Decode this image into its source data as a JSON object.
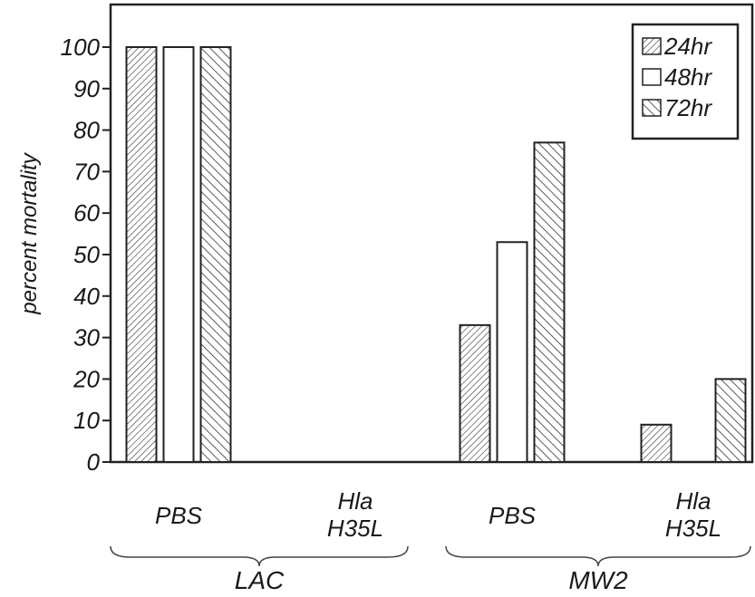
{
  "chart_data": {
    "type": "bar",
    "ylabel": "percent mortality",
    "xlabel": "",
    "ylim": [
      0,
      100
    ],
    "yticks": [
      0,
      10,
      20,
      30,
      40,
      50,
      60,
      70,
      80,
      90,
      100
    ],
    "grid": false,
    "legend_position": "top-right",
    "categories": [
      {
        "lines": [
          "PBS"
        ],
        "group": "LAC"
      },
      {
        "lines": [
          "Hla",
          "H35L"
        ],
        "group": "LAC"
      },
      {
        "lines": [
          "PBS"
        ],
        "group": "MW2"
      },
      {
        "lines": [
          "Hla",
          "H35L"
        ],
        "group": "MW2"
      }
    ],
    "groups": [
      "LAC",
      "MW2"
    ],
    "series": [
      {
        "name": "24hr",
        "pattern": "fine-hatch",
        "values": [
          100,
          0,
          33,
          9
        ]
      },
      {
        "name": "48hr",
        "pattern": "open",
        "values": [
          100,
          0,
          53,
          0
        ]
      },
      {
        "name": "72hr",
        "pattern": "coarse-hatch",
        "values": [
          100,
          0,
          77,
          20
        ]
      }
    ]
  }
}
